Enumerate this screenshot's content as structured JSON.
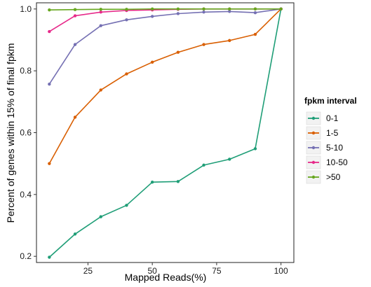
{
  "chart_data": {
    "type": "line",
    "title": "",
    "xlabel": "Mapped Reads(%)",
    "ylabel": "Percent of genes within 15% of final fpkm",
    "x": [
      10,
      20,
      30,
      40,
      50,
      60,
      70,
      80,
      90,
      100
    ],
    "xlim": [
      5,
      105
    ],
    "ylim": [
      0.18,
      1.02
    ],
    "xticks": [
      25,
      50,
      75,
      100
    ],
    "yticks": [
      0.2,
      0.4,
      0.6,
      0.8,
      1.0
    ],
    "xtick_labels": [
      "25",
      "50",
      "75",
      "100"
    ],
    "ytick_labels": [
      "0.2",
      "0.4",
      "0.6",
      "0.8",
      "1.0"
    ],
    "grid": false,
    "legend": {
      "title": "fpkm interval",
      "placement": "right"
    },
    "series": [
      {
        "name": "0-1",
        "color": "#1f9e77",
        "values": [
          0.197,
          0.272,
          0.328,
          0.365,
          0.44,
          0.442,
          0.495,
          0.514,
          0.548,
          1.0
        ]
      },
      {
        "name": "1-5",
        "color": "#d95f02",
        "values": [
          0.5,
          0.65,
          0.738,
          0.79,
          0.828,
          0.86,
          0.885,
          0.898,
          0.918,
          1.0
        ]
      },
      {
        "name": "5-10",
        "color": "#7570b3",
        "values": [
          0.757,
          0.885,
          0.946,
          0.965,
          0.976,
          0.985,
          0.99,
          0.992,
          0.988,
          1.0
        ]
      },
      {
        "name": "10-50",
        "color": "#e7298a",
        "values": [
          0.927,
          0.978,
          0.99,
          0.995,
          0.997,
          0.999,
          1.0,
          1.0,
          1.0,
          1.0
        ]
      },
      {
        "name": ">50",
        "color": "#66a61e",
        "values": [
          0.997,
          0.998,
          0.999,
          0.999,
          1.0,
          1.0,
          1.0,
          1.0,
          1.0,
          1.0
        ]
      }
    ]
  }
}
